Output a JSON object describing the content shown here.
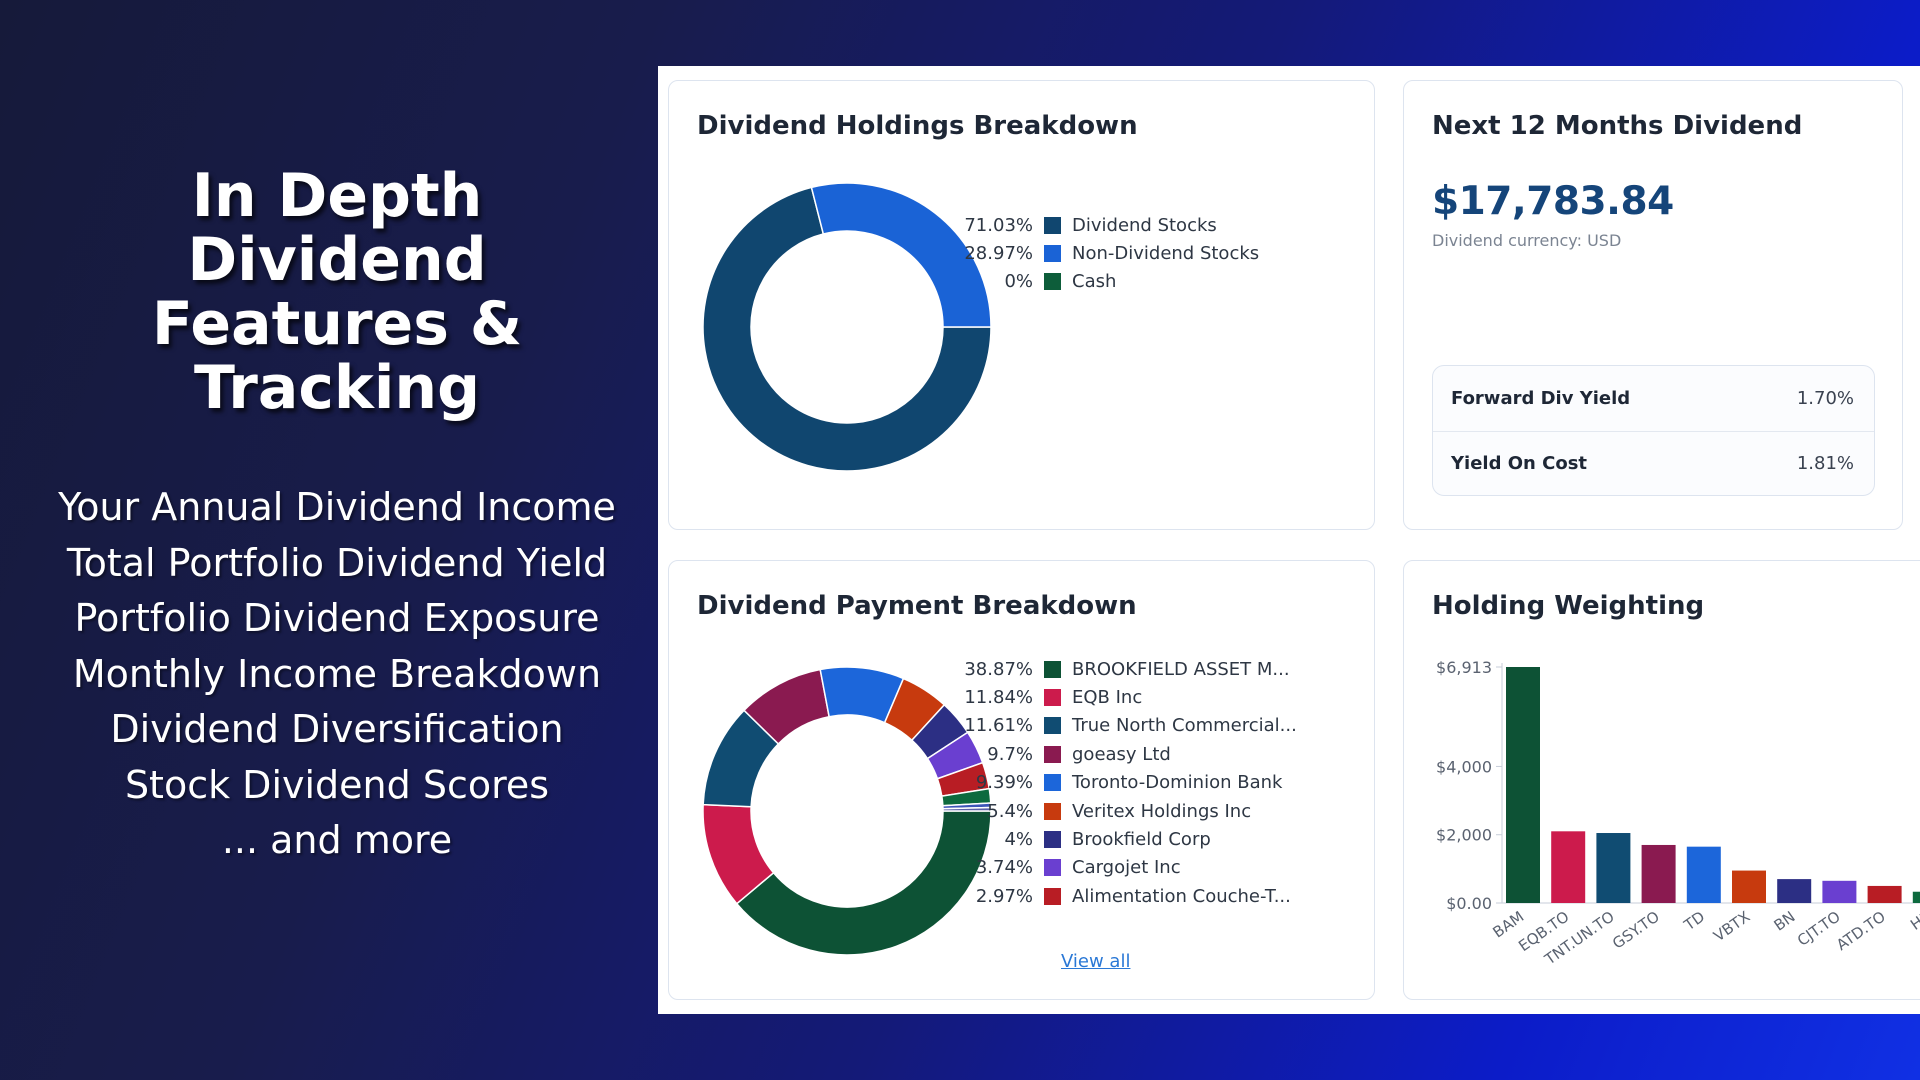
{
  "promo": {
    "title_lines": [
      "In Depth Dividend",
      "Features &",
      "Tracking"
    ],
    "features": [
      "Your Annual Dividend Income",
      "Total Portfolio Dividend Yield",
      "Portfolio Dividend Exposure",
      "Monthly Income Breakdown",
      "Dividend Diversification",
      "Stock Dividend Scores",
      "... and more"
    ]
  },
  "holdings_breakdown": {
    "title": "Dividend Holdings Breakdown",
    "items": [
      {
        "pct": "71.03%",
        "label": "Dividend Stocks",
        "value": 71.03,
        "color": "#10466f"
      },
      {
        "pct": "28.97%",
        "label": "Non-Dividend Stocks",
        "value": 28.97,
        "color": "#1a63d6"
      },
      {
        "pct": "0%",
        "label": "Cash",
        "value": 0,
        "color": "#0d5d3a"
      }
    ]
  },
  "next_12_months": {
    "title": "Next 12 Months Dividend",
    "amount": "$17,783.84",
    "currency_note": "Dividend currency: USD",
    "rows": [
      {
        "label": "Forward Div Yield",
        "value": "1.70%"
      },
      {
        "label": "Yield On Cost",
        "value": "1.81%"
      }
    ]
  },
  "payment_breakdown": {
    "title": "Dividend Payment Breakdown",
    "view_all": "View all",
    "items": [
      {
        "pct": "38.87%",
        "label": "BROOKFIELD ASSET M...",
        "value": 38.87,
        "color": "#0d5235"
      },
      {
        "pct": "11.84%",
        "label": "EQB Inc",
        "value": 11.84,
        "color": "#cc1b4c"
      },
      {
        "pct": "11.61%",
        "label": "True North Commercial...",
        "value": 11.61,
        "color": "#104c72"
      },
      {
        "pct": "9.7%",
        "label": "goeasy Ltd",
        "value": 9.7,
        "color": "#8a1a50"
      },
      {
        "pct": "9.39%",
        "label": "Toronto-Dominion Bank",
        "value": 9.39,
        "color": "#1c66da"
      },
      {
        "pct": "5.4%",
        "label": "Veritex Holdings Inc",
        "value": 5.4,
        "color": "#c73a0e"
      },
      {
        "pct": "4%",
        "label": "Brookfield Corp",
        "value": 4,
        "color": "#2c2f84"
      },
      {
        "pct": "3.74%",
        "label": "Cargojet Inc",
        "value": 3.74,
        "color": "#6a3fd0"
      },
      {
        "pct": "2.97%",
        "label": "Alimentation Couche-T...",
        "value": 2.97,
        "color": "#b81d24"
      }
    ],
    "hidden_slices": [
      {
        "value": 1.6,
        "color": "#0d6a3e"
      },
      {
        "value": 0.5,
        "color": "#3d55b8"
      },
      {
        "value": 0.38,
        "color": "#5b5fa8"
      }
    ]
  },
  "holding_weighting": {
    "title": "Holding Weighting"
  },
  "chart_data": {
    "type": "bar",
    "title": "Holding Weighting",
    "categories": [
      "BAM",
      "EQB.TO",
      "TNT.UN.TO",
      "GSY.TO",
      "TD",
      "VBTX",
      "BN",
      "CJT.TO",
      "ATD.TO",
      "HP"
    ],
    "values": [
      6913,
      2100,
      2050,
      1700,
      1650,
      950,
      700,
      650,
      500,
      330
    ],
    "colors": [
      "#0d5235",
      "#cc1b4c",
      "#104c72",
      "#8a1a50",
      "#1c66da",
      "#c73a0e",
      "#2c2f84",
      "#6a3fd0",
      "#b81d24",
      "#0d6a3e"
    ],
    "yticks": [
      {
        "value": 0,
        "label": "$0.00"
      },
      {
        "value": 2000,
        "label": "$2,000"
      },
      {
        "value": 4000,
        "label": "$4,000"
      },
      {
        "value": 6913,
        "label": "$6,913"
      }
    ],
    "ylim": [
      0,
      6913
    ],
    "xlabel": "",
    "ylabel": ""
  }
}
